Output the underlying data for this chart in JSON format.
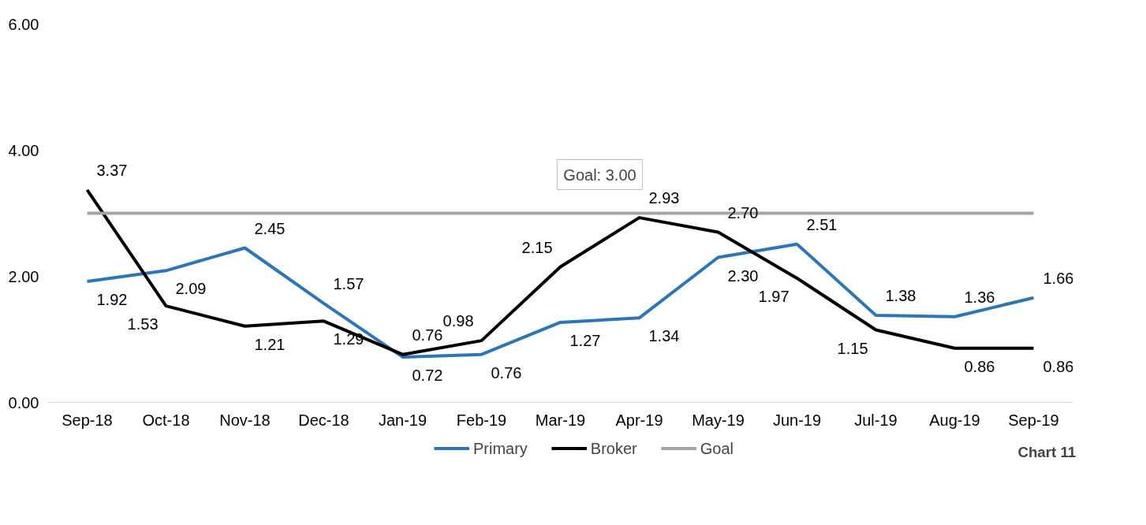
{
  "chart_data": {
    "type": "line",
    "categories": [
      "Sep-18",
      "Oct-18",
      "Nov-18",
      "Dec-18",
      "Jan-19",
      "Feb-19",
      "Mar-19",
      "Apr-19",
      "May-19",
      "Jun-19",
      "Jul-19",
      "Aug-19",
      "Sep-19"
    ],
    "series": [
      {
        "name": "Primary",
        "color": "#2e75b6",
        "values": [
          1.92,
          2.09,
          2.45,
          1.57,
          0.72,
          0.76,
          1.27,
          1.34,
          2.3,
          2.51,
          1.38,
          1.36,
          1.66
        ],
        "value_labels": [
          "1.92",
          "2.09",
          "2.45",
          "1.57",
          "0.72",
          "0.76",
          "1.27",
          "1.34",
          "2.30",
          "2.51",
          "1.38",
          "1.36",
          "1.66"
        ]
      },
      {
        "name": "Broker",
        "color": "#000000",
        "values": [
          3.37,
          1.53,
          1.21,
          1.29,
          0.76,
          0.98,
          2.15,
          2.93,
          2.7,
          1.97,
          1.15,
          0.86,
          0.86
        ],
        "value_labels": [
          "3.37",
          "1.53",
          "1.21",
          "1.29",
          "0.76",
          "0.98",
          "2.15",
          "2.93",
          "2.70",
          "1.97",
          "1.15",
          "0.86",
          "0.86"
        ]
      },
      {
        "name": "Goal",
        "color": "#a5a5a5",
        "values": [
          3,
          3,
          3,
          3,
          3,
          3,
          3,
          3,
          3,
          3,
          3,
          3,
          3
        ]
      }
    ],
    "ylim": [
      0,
      6
    ],
    "yticks": [
      {
        "value": 0,
        "label": "0.00"
      },
      {
        "value": 2,
        "label": "2.00"
      },
      {
        "value": 4,
        "label": "4.00"
      },
      {
        "value": 6,
        "label": "6.00"
      }
    ],
    "annotations": [
      {
        "text": "Goal: 3.00",
        "x": "Apr-19",
        "y": 3
      },
      "Chart 11"
    ],
    "legend": "bottom",
    "grid": false,
    "marker": "none",
    "line_style": "solid"
  }
}
